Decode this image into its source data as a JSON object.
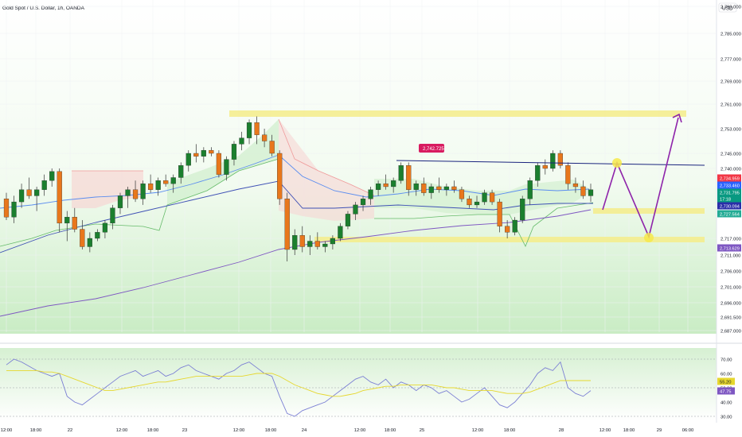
{
  "header": {
    "symbol": "Gold Spot / U.S. Dollar, 1h, OANDA",
    "currency": "USD"
  },
  "chart_data": {
    "type": "candlestick",
    "title": "Gold Spot / U.S. Dollar, 1h, OANDA",
    "price_axis": {
      "ticks": [
        "2,790.000",
        "2,785.000",
        "2,777.000",
        "2,769.000",
        "2,761.000",
        "2,753.000",
        "2,745.000",
        "2,740.000",
        "2,717.000",
        "2,711.000",
        "2,706.000",
        "2,701.000",
        "2,696.000",
        "2,691.500",
        "2,687.000"
      ],
      "range": [
        2685,
        2793
      ]
    },
    "price_tags": [
      {
        "label": "2,734.959",
        "color": "#f23645"
      },
      {
        "label": "2,733.460",
        "color": "#2962ff"
      },
      {
        "label": "2,731.795",
        "color": "#089981"
      },
      {
        "label": "17:18",
        "color": "#089981"
      },
      {
        "label": "2,730.094",
        "color": "#2a2ea8"
      },
      {
        "label": "2,727.564",
        "color": "#22ab94"
      },
      {
        "label": "2,713.629",
        "color": "#7e57c2"
      }
    ],
    "time_axis": [
      "12:00",
      "18:00",
      "22",
      "12:00",
      "18:00",
      "23",
      "12:00",
      "18:00",
      "24",
      "12:00",
      "18:00",
      "25",
      "12:00",
      "18:00",
      "28",
      "12:00",
      "18:00",
      "29",
      "06:00"
    ],
    "annotations": {
      "callout": "2,742.725",
      "resistance_zone": 2759,
      "mid_zone": 2728,
      "support_zone": 2717,
      "trendline_level": 2742
    },
    "candles": [
      [
        2730,
        2732,
        2723,
        2724
      ],
      [
        2724,
        2731,
        2722,
        2729
      ],
      [
        2729,
        2735,
        2727,
        2733
      ],
      [
        2733,
        2737,
        2730,
        2731
      ],
      [
        2731,
        2734,
        2726,
        2733
      ],
      [
        2733,
        2738,
        2731,
        2736
      ],
      [
        2736,
        2740,
        2734,
        2739
      ],
      [
        2739,
        2740,
        2719,
        2722
      ],
      [
        2722,
        2726,
        2716,
        2724
      ],
      [
        2724,
        2727,
        2719,
        2720
      ],
      [
        2720,
        2723,
        2713,
        2714
      ],
      [
        2714,
        2719,
        2712,
        2717
      ],
      [
        2717,
        2720,
        2716,
        2719
      ],
      [
        2719,
        2723,
        2717,
        2722
      ],
      [
        2722,
        2728,
        2720,
        2727
      ],
      [
        2727,
        2732,
        2725,
        2731
      ],
      [
        2731,
        2734,
        2727,
        2733
      ],
      [
        2733,
        2736,
        2729,
        2730
      ],
      [
        2730,
        2736,
        2728,
        2735
      ],
      [
        2735,
        2738,
        2732,
        2733
      ],
      [
        2733,
        2737,
        2731,
        2736
      ],
      [
        2736,
        2738,
        2734,
        2735
      ],
      [
        2735,
        2738,
        2732,
        2737
      ],
      [
        2737,
        2742,
        2735,
        2741
      ],
      [
        2741,
        2746,
        2739,
        2745
      ],
      [
        2745,
        2748,
        2742,
        2744
      ],
      [
        2744,
        2747,
        2742,
        2746
      ],
      [
        2746,
        2747,
        2744,
        2745
      ],
      [
        2745,
        2746,
        2737,
        2738
      ],
      [
        2738,
        2744,
        2736,
        2743
      ],
      [
        2743,
        2749,
        2741,
        2748
      ],
      [
        2748,
        2752,
        2746,
        2750
      ],
      [
        2750,
        2756,
        2748,
        2755
      ],
      [
        2755,
        2757,
        2748,
        2751
      ],
      [
        2751,
        2753,
        2747,
        2749
      ],
      [
        2749,
        2751,
        2744,
        2745
      ],
      [
        2745,
        2746,
        2728,
        2730
      ],
      [
        2730,
        2732,
        2709,
        2713
      ],
      [
        2713,
        2720,
        2711,
        2718
      ],
      [
        2718,
        2721,
        2712,
        2714
      ],
      [
        2714,
        2718,
        2711,
        2716
      ],
      [
        2716,
        2719,
        2713,
        2714
      ],
      [
        2714,
        2716,
        2712,
        2715
      ],
      [
        2715,
        2718,
        2713,
        2717
      ],
      [
        2717,
        2722,
        2716,
        2721
      ],
      [
        2721,
        2726,
        2720,
        2725
      ],
      [
        2725,
        2729,
        2723,
        2728
      ],
      [
        2728,
        2731,
        2726,
        2730
      ],
      [
        2730,
        2734,
        2728,
        2733
      ],
      [
        2733,
        2736,
        2731,
        2735
      ],
      [
        2735,
        2738,
        2733,
        2734
      ],
      [
        2734,
        2737,
        2732,
        2736
      ],
      [
        2736,
        2742,
        2735,
        2741
      ],
      [
        2741,
        2742,
        2731,
        2733
      ],
      [
        2733,
        2736,
        2731,
        2735
      ],
      [
        2735,
        2737,
        2731,
        2732
      ],
      [
        2732,
        2735,
        2730,
        2734
      ],
      [
        2734,
        2737,
        2732,
        2733
      ],
      [
        2733,
        2735,
        2731,
        2734
      ],
      [
        2734,
        2736,
        2732,
        2733
      ],
      [
        2733,
        2734,
        2729,
        2730
      ],
      [
        2730,
        2731,
        2727,
        2728
      ],
      [
        2728,
        2731,
        2727,
        2729
      ],
      [
        2729,
        2733,
        2728,
        2732
      ],
      [
        2732,
        2733,
        2728,
        2729
      ],
      [
        2729,
        2730,
        2719,
        2721
      ],
      [
        2721,
        2723,
        2717,
        2719
      ],
      [
        2719,
        2724,
        2718,
        2723
      ],
      [
        2723,
        2731,
        2722,
        2730
      ],
      [
        2730,
        2737,
        2728,
        2736
      ],
      [
        2736,
        2742,
        2734,
        2741
      ],
      [
        2741,
        2743,
        2738,
        2740
      ],
      [
        2740,
        2746,
        2739,
        2745
      ],
      [
        2745,
        2746,
        2740,
        2741
      ],
      [
        2741,
        2742,
        2733,
        2735
      ],
      [
        2735,
        2737,
        2732,
        2734
      ],
      [
        2734,
        2736,
        2730,
        2731
      ],
      [
        2731,
        2735,
        2729,
        2733
      ]
    ],
    "moving_averages": [
      {
        "name": "fast",
        "color": "#5b8def"
      },
      {
        "name": "mid",
        "color": "#3f51b5"
      },
      {
        "name": "slow",
        "color": "#7e57c2"
      }
    ],
    "rsi": {
      "levels": [
        "70.00",
        "60.00",
        "50.00",
        "40.00",
        "30.00"
      ],
      "tags": [
        {
          "label": "55.20",
          "color": "#e6d72e"
        },
        {
          "label": "47.75",
          "color": "#7e57c2"
        }
      ],
      "values": [
        66,
        70,
        68,
        65,
        62,
        60,
        58,
        60,
        44,
        40,
        38,
        42,
        46,
        50,
        54,
        58,
        60,
        62,
        58,
        60,
        62,
        58,
        60,
        64,
        66,
        62,
        60,
        58,
        56,
        60,
        62,
        66,
        68,
        64,
        60,
        58,
        44,
        32,
        30,
        34,
        36,
        38,
        40,
        44,
        48,
        52,
        56,
        58,
        54,
        52,
        56,
        50,
        54,
        52,
        48,
        52,
        50,
        46,
        48,
        44,
        40,
        42,
        46,
        50,
        44,
        38,
        36,
        40,
        46,
        52,
        60,
        64,
        62,
        68,
        50,
        46,
        44,
        48
      ],
      "ma": [
        62,
        62,
        62,
        62,
        62,
        61,
        61,
        60,
        58,
        56,
        54,
        52,
        50,
        48,
        48,
        49,
        50,
        51,
        52,
        53,
        54,
        54,
        55,
        56,
        57,
        58,
        58,
        58,
        58,
        58,
        58,
        58,
        59,
        60,
        60,
        60,
        58,
        55,
        52,
        50,
        48,
        46,
        45,
        44,
        44,
        45,
        46,
        48,
        49,
        50,
        51,
        51,
        52,
        52,
        52,
        52,
        52,
        51,
        50,
        50,
        49,
        48,
        48,
        48,
        48,
        47,
        46,
        46,
        46,
        47,
        49,
        51,
        53,
        55,
        55,
        55,
        55,
        55
      ]
    }
  }
}
